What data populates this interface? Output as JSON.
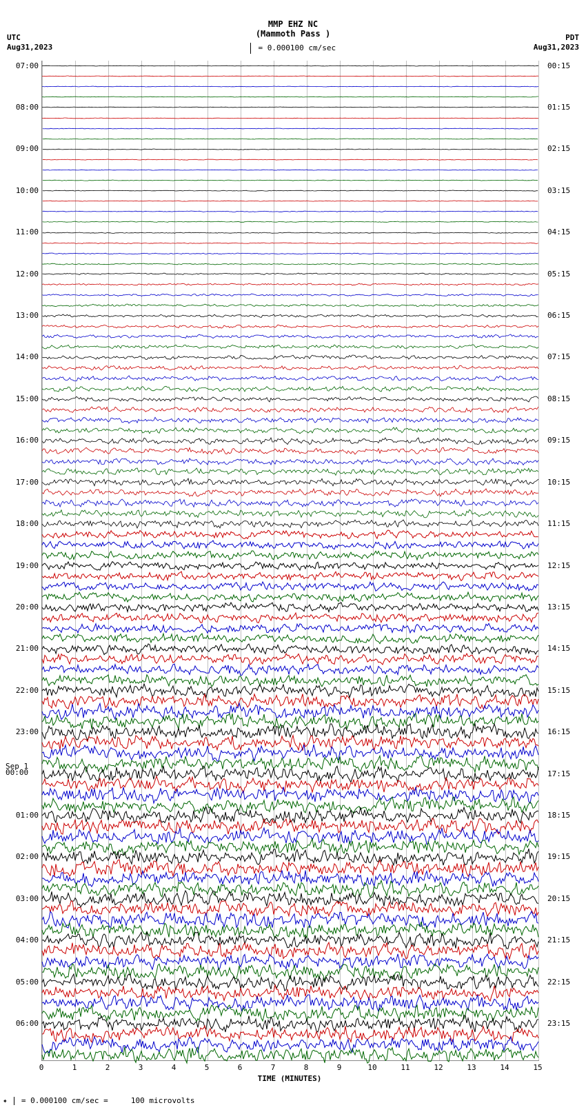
{
  "header": {
    "station": "MMP EHZ NC",
    "location": "(Mammoth Pass )",
    "scale_text": "= 0.000100 cm/sec"
  },
  "top_left": {
    "tz": "UTC",
    "date": "Aug31,2023"
  },
  "top_right": {
    "tz": "PDT",
    "date": "Aug31,2023"
  },
  "plot": {
    "type": "seismogram",
    "background_color": "#ffffff",
    "grid_color": "#c0c0c0",
    "trace_colors": [
      "#000000",
      "#cc0000",
      "#0000cc",
      "#006600"
    ],
    "x_axis": {
      "label": "TIME (MINUTES)",
      "min": 0,
      "max": 15,
      "ticks": [
        0,
        1,
        2,
        3,
        4,
        5,
        6,
        7,
        8,
        9,
        10,
        11,
        12,
        13,
        14,
        15
      ]
    },
    "lines_total": 96,
    "left_labels": [
      {
        "idx": 0,
        "text": "07:00"
      },
      {
        "idx": 4,
        "text": "08:00"
      },
      {
        "idx": 8,
        "text": "09:00"
      },
      {
        "idx": 12,
        "text": "10:00"
      },
      {
        "idx": 16,
        "text": "11:00"
      },
      {
        "idx": 20,
        "text": "12:00"
      },
      {
        "idx": 24,
        "text": "13:00"
      },
      {
        "idx": 28,
        "text": "14:00"
      },
      {
        "idx": 32,
        "text": "15:00"
      },
      {
        "idx": 36,
        "text": "16:00"
      },
      {
        "idx": 40,
        "text": "17:00"
      },
      {
        "idx": 44,
        "text": "18:00"
      },
      {
        "idx": 48,
        "text": "19:00"
      },
      {
        "idx": 52,
        "text": "20:00"
      },
      {
        "idx": 56,
        "text": "21:00"
      },
      {
        "idx": 60,
        "text": "22:00"
      },
      {
        "idx": 64,
        "text": "23:00"
      },
      {
        "idx": 68,
        "text": "00:00",
        "date_prefix": "Sep 1"
      },
      {
        "idx": 72,
        "text": "01:00"
      },
      {
        "idx": 76,
        "text": "02:00"
      },
      {
        "idx": 80,
        "text": "03:00"
      },
      {
        "idx": 84,
        "text": "04:00"
      },
      {
        "idx": 88,
        "text": "05:00"
      },
      {
        "idx": 92,
        "text": "06:00"
      }
    ],
    "right_labels": [
      {
        "idx": 0,
        "text": "00:15"
      },
      {
        "idx": 4,
        "text": "01:15"
      },
      {
        "idx": 8,
        "text": "02:15"
      },
      {
        "idx": 12,
        "text": "03:15"
      },
      {
        "idx": 16,
        "text": "04:15"
      },
      {
        "idx": 20,
        "text": "05:15"
      },
      {
        "idx": 24,
        "text": "06:15"
      },
      {
        "idx": 28,
        "text": "07:15"
      },
      {
        "idx": 32,
        "text": "08:15"
      },
      {
        "idx": 36,
        "text": "09:15"
      },
      {
        "idx": 40,
        "text": "10:15"
      },
      {
        "idx": 44,
        "text": "11:15"
      },
      {
        "idx": 48,
        "text": "12:15"
      },
      {
        "idx": 52,
        "text": "13:15"
      },
      {
        "idx": 56,
        "text": "14:15"
      },
      {
        "idx": 60,
        "text": "15:15"
      },
      {
        "idx": 64,
        "text": "16:15"
      },
      {
        "idx": 68,
        "text": "17:15"
      },
      {
        "idx": 72,
        "text": "18:15"
      },
      {
        "idx": 76,
        "text": "19:15"
      },
      {
        "idx": 80,
        "text": "20:15"
      },
      {
        "idx": 84,
        "text": "21:15"
      },
      {
        "idx": 88,
        "text": "22:15"
      },
      {
        "idx": 92,
        "text": "23:15"
      }
    ],
    "amplitude_profile": [
      0.5,
      0.5,
      0.5,
      0.5,
      0.5,
      0.5,
      0.6,
      0.6,
      0.6,
      0.6,
      0.6,
      0.6,
      0.6,
      0.6,
      0.7,
      0.7,
      0.7,
      0.8,
      0.9,
      1.0,
      1.2,
      1.5,
      1.8,
      2.0,
      2.2,
      2.5,
      2.8,
      3.0,
      3.2,
      3.5,
      3.8,
      4.0,
      4.0,
      4.2,
      4.5,
      4.5,
      4.8,
      5.0,
      5.0,
      5.2,
      5.5,
      5.5,
      5.8,
      6.0,
      6.0,
      6.2,
      6.5,
      6.5,
      6.5,
      6.8,
      7.0,
      7.0,
      7.0,
      7.2,
      7.5,
      7.5,
      7.8,
      8.0,
      8.5,
      9.0,
      10.0,
      11.0,
      12.0,
      12.0,
      12.0,
      12.0,
      12.0,
      12.0,
      12.0,
      12.0,
      12.0,
      12.0,
      12.0,
      12.0,
      12.0,
      12.0,
      12.0,
      12.0,
      12.0,
      12.0,
      12.0,
      12.0,
      12.0,
      12.0,
      12.0,
      12.0,
      12.0,
      12.0,
      12.0,
      12.0,
      12.0,
      12.0,
      12.0,
      12.0,
      12.0,
      12.0
    ]
  },
  "footer": {
    "text_left": "= 0.000100 cm/sec =",
    "text_right": "100 microvolts"
  }
}
